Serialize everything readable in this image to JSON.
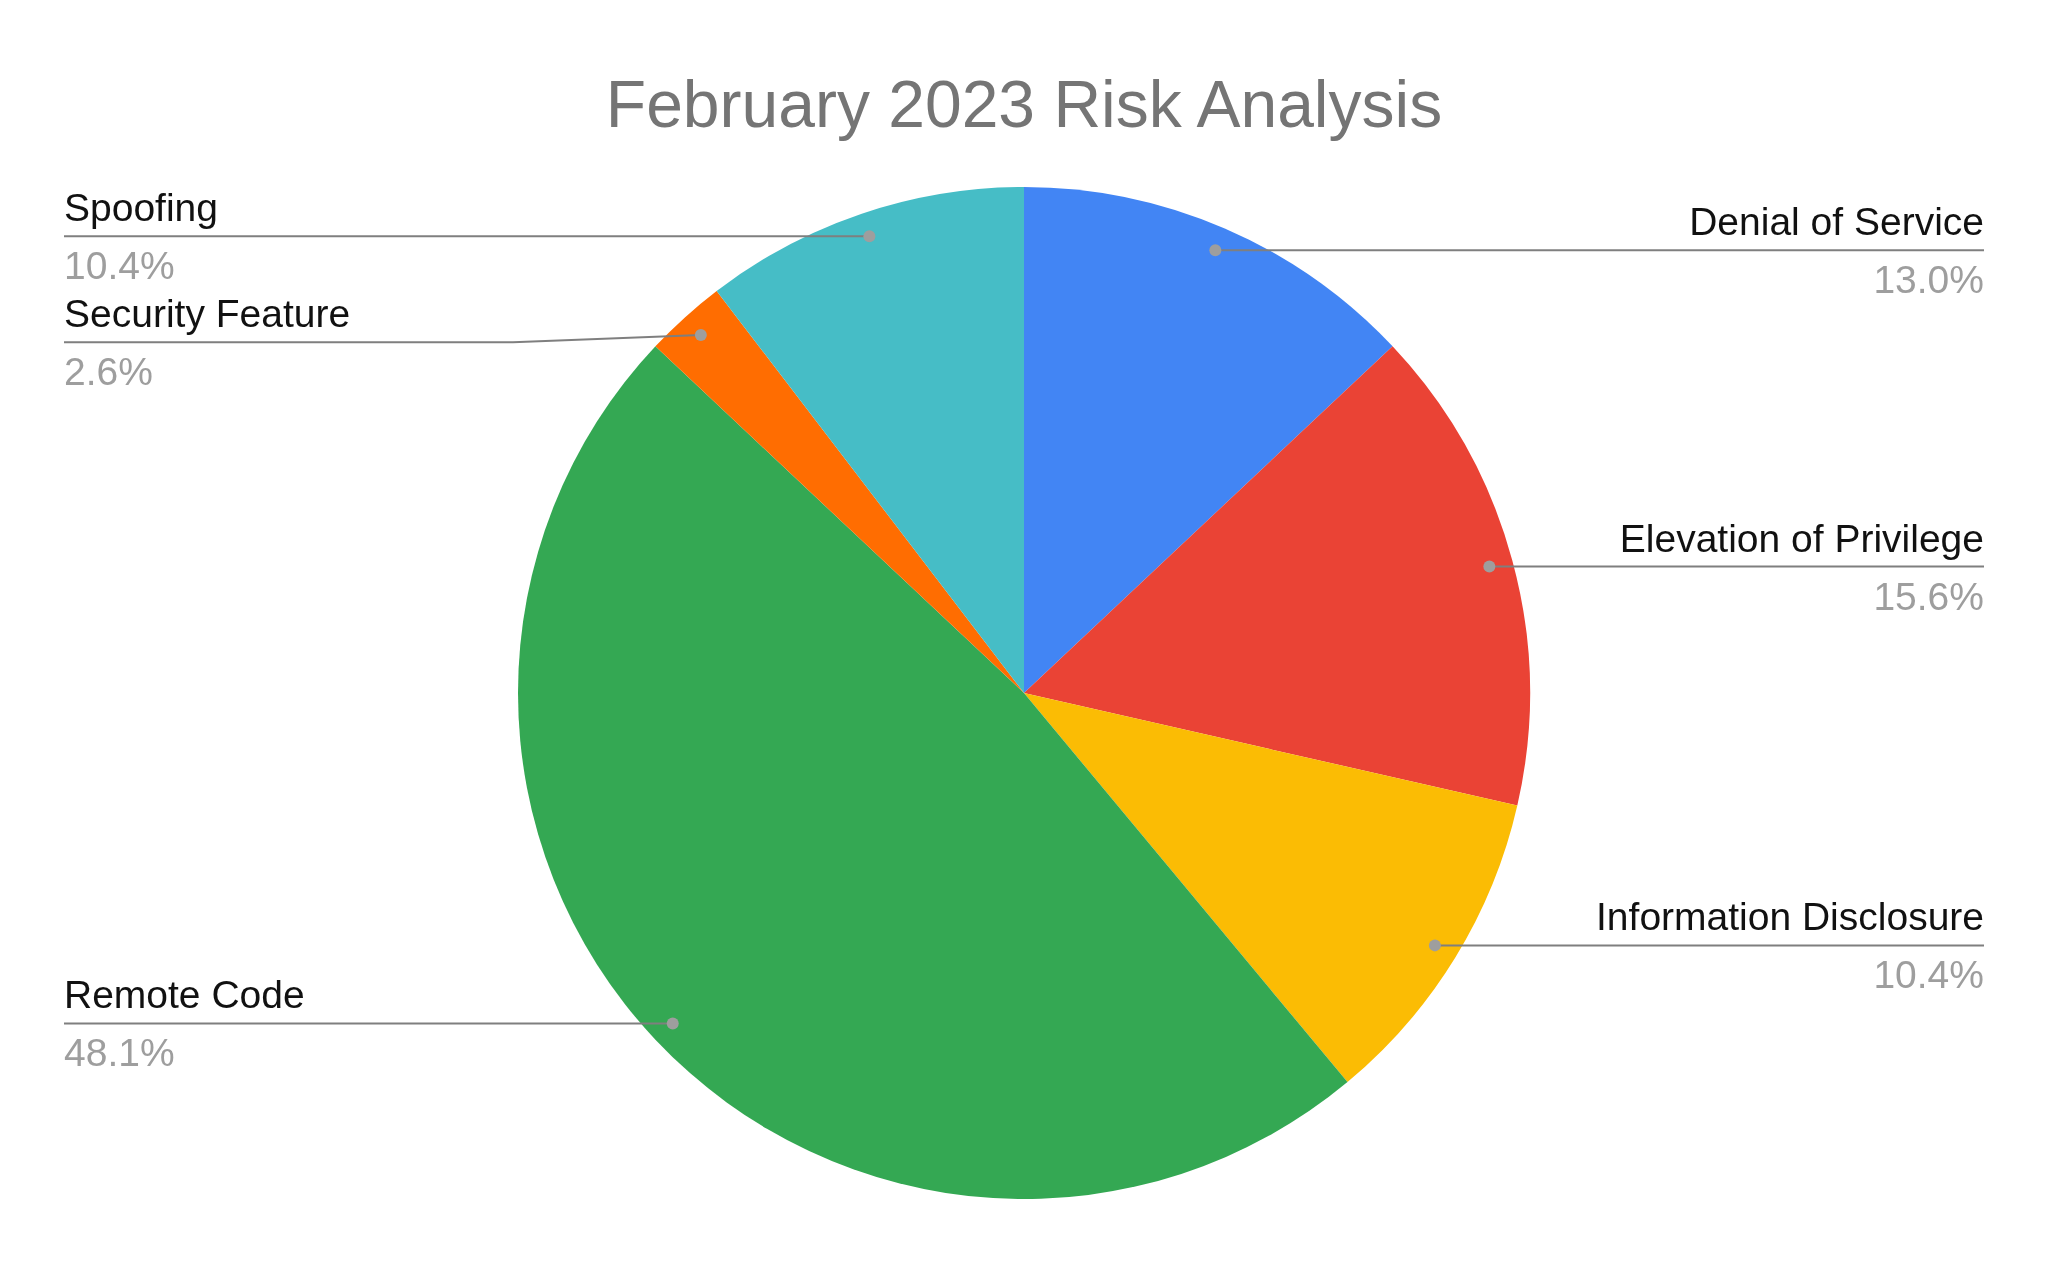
{
  "chart_data": {
    "type": "pie",
    "title": "February 2023 Risk Analysis",
    "categories": [
      "Denial of Service",
      "Elevation of Privilege",
      "Information Disclosure",
      "Remote Code",
      "Security Feature",
      "Spoofing"
    ],
    "values": [
      13.0,
      15.6,
      10.4,
      48.1,
      2.6,
      10.4
    ],
    "colors": [
      "#4285f4",
      "#ea4335",
      "#fbbc04",
      "#34a853",
      "#ff6d01",
      "#46bdc6"
    ],
    "value_labels": [
      "13.0%",
      "15.6%",
      "10.4%",
      "48.1%",
      "2.6%",
      "10.4%"
    ]
  }
}
